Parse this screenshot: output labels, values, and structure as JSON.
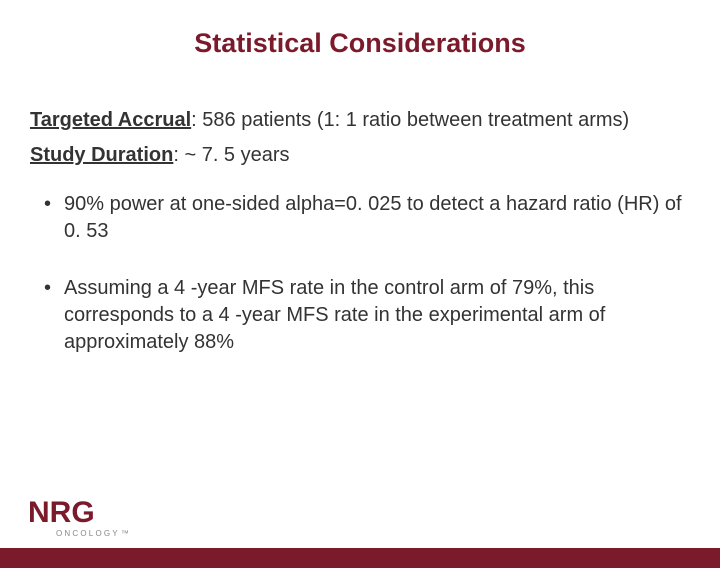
{
  "colors": {
    "brand": "#7a1a2b",
    "text": "#333333",
    "background": "#ffffff",
    "logo_sub": "#888888"
  },
  "title": "Statistical Considerations",
  "intro": {
    "accrual_label": "Targeted Accrual",
    "accrual_text": ": 586 patients (1: 1 ratio between treatment arms)",
    "duration_label": "Study Duration",
    "duration_text": ": ~ 7. 5 years"
  },
  "bullets": [
    "90% power at one-sided alpha=0. 025 to detect a hazard ratio (HR) of 0. 53",
    "Assuming a 4 -year MFS rate in the control arm of 79%, this corresponds to a 4 -year MFS rate in the experimental arm of approximately 88%"
  ],
  "logo": {
    "main": "NRG",
    "sub": "ONCOLOGY",
    "tm": "™"
  },
  "typography": {
    "title_fontsize": 27,
    "body_fontsize": 20,
    "logo_main_fontsize": 30,
    "logo_sub_fontsize": 8
  }
}
